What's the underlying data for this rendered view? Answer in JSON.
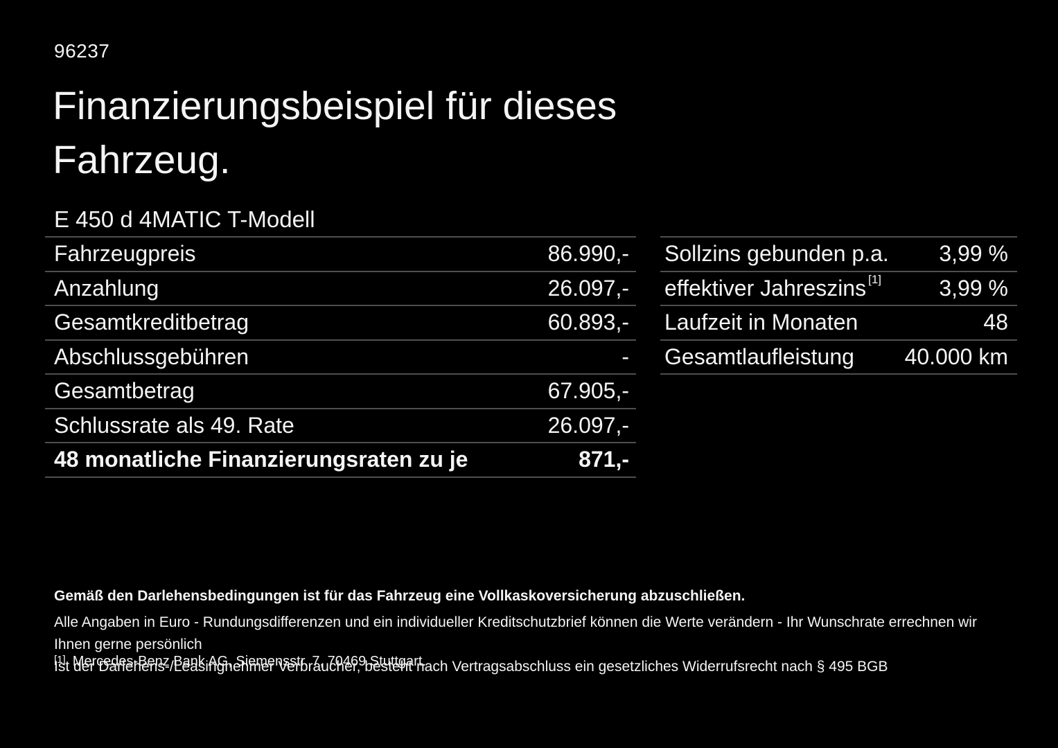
{
  "page": {
    "ref_number": "96237",
    "title_line1": "Finanzierungsbeispiel für dieses",
    "title_line2": "Fahrzeug.",
    "model": "E 450 d 4MATIC T-Modell"
  },
  "left_table": {
    "rows": [
      {
        "label": "Fahrzeugpreis",
        "value": "86.990,-"
      },
      {
        "label": "Anzahlung",
        "value": "26.097,-"
      },
      {
        "label": "Gesamtkreditbetrag",
        "value": "60.893,-"
      },
      {
        "label": "Abschlussgebühren",
        "value": "-"
      },
      {
        "label": "Gesamtbetrag",
        "value": "67.905,-"
      },
      {
        "label": "Schlussrate als 49. Rate",
        "value": "26.097,-"
      },
      {
        "label": "48 monatliche Finanzierungsraten zu je",
        "value": "871,-"
      }
    ]
  },
  "right_table": {
    "rows": [
      {
        "label": "Sollzins gebunden p.a.",
        "sup": "",
        "value": "3,99 %"
      },
      {
        "label": "effektiver Jahreszins",
        "sup": "[1]",
        "value": "3,99 %"
      },
      {
        "label": "Laufzeit in Monaten",
        "sup": "",
        "value": "48"
      },
      {
        "label": "Gesamtlaufleistung",
        "sup": "",
        "value": "40.000 km"
      }
    ]
  },
  "footer": {
    "bold_note": "Gemäß den Darlehensbedingungen ist für das Fahrzeug eine Vollkaskoversicherung abzuschließen.",
    "note1": "Alle Angaben in Euro - Rundungsdifferenzen und ein individueller Kreditschutzbrief können die Werte verändern - Ihr Wunschrate errechnen wir Ihnen gerne persönlich",
    "note2": "Ist der Darlehens-/Leasingnehmer Verbraucher, besteht nach Vertragsabschluss ein gesetzliches Widerrufsrecht nach § 495 BGB",
    "footnote_marker": "[1]",
    "footnote_text": "Mercedes-Benz Bank AG, Siemensstr. 7, 70469 Stuttgart."
  },
  "colors": {
    "background": "#000000",
    "text": "#f4f4f4",
    "divider": "#4f4f4f"
  }
}
